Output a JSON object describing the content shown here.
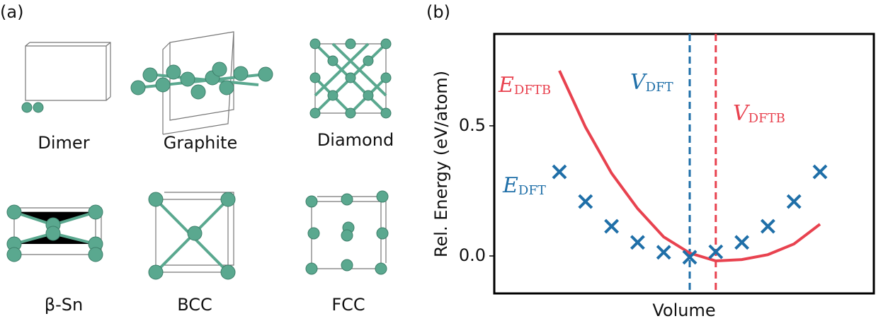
{
  "panel_a": {
    "label": "(a)",
    "structures": [
      "Dimer",
      "Graphite",
      "Diamond",
      "β-Sn",
      "BCC",
      "FCC"
    ]
  },
  "chart_data": {
    "type": "line",
    "panel_label": "(b)",
    "y_label": "Rel. Energy (eV/atom)",
    "x_label": "Volume",
    "categories": [
      null,
      null,
      null,
      null,
      null,
      null,
      null,
      null,
      null,
      null,
      null
    ],
    "ylim": [
      -0.144,
      0.853
    ],
    "yticks": [
      {
        "value": 0,
        "label": "0.0"
      },
      0.5
    ],
    "series": [
      {
        "name": "E",
        "subscript": "DFTB",
        "color": "#e8424f",
        "marker": "line",
        "values": [
          0.712,
          0.495,
          0.318,
          0.182,
          0.073,
          0.011,
          -0.019,
          -0.014,
          0.005,
          0.046,
          0.122
        ]
      },
      {
        "name": "E",
        "subscript": "DFT",
        "color": "#1f6fa8",
        "marker": "x",
        "values": [
          0.323,
          0.209,
          0.114,
          0.052,
          0.014,
          -0.005,
          0.016,
          0.052,
          0.114,
          0.209,
          0.323
        ]
      }
    ],
    "reference_lines": [
      {
        "name": "V",
        "subscript": "DFT",
        "color": "#1f6fa8",
        "category_index": 5
      },
      {
        "name": "V",
        "subscript": "DFTB",
        "color": "#e8424f",
        "category_index": 6
      }
    ]
  }
}
